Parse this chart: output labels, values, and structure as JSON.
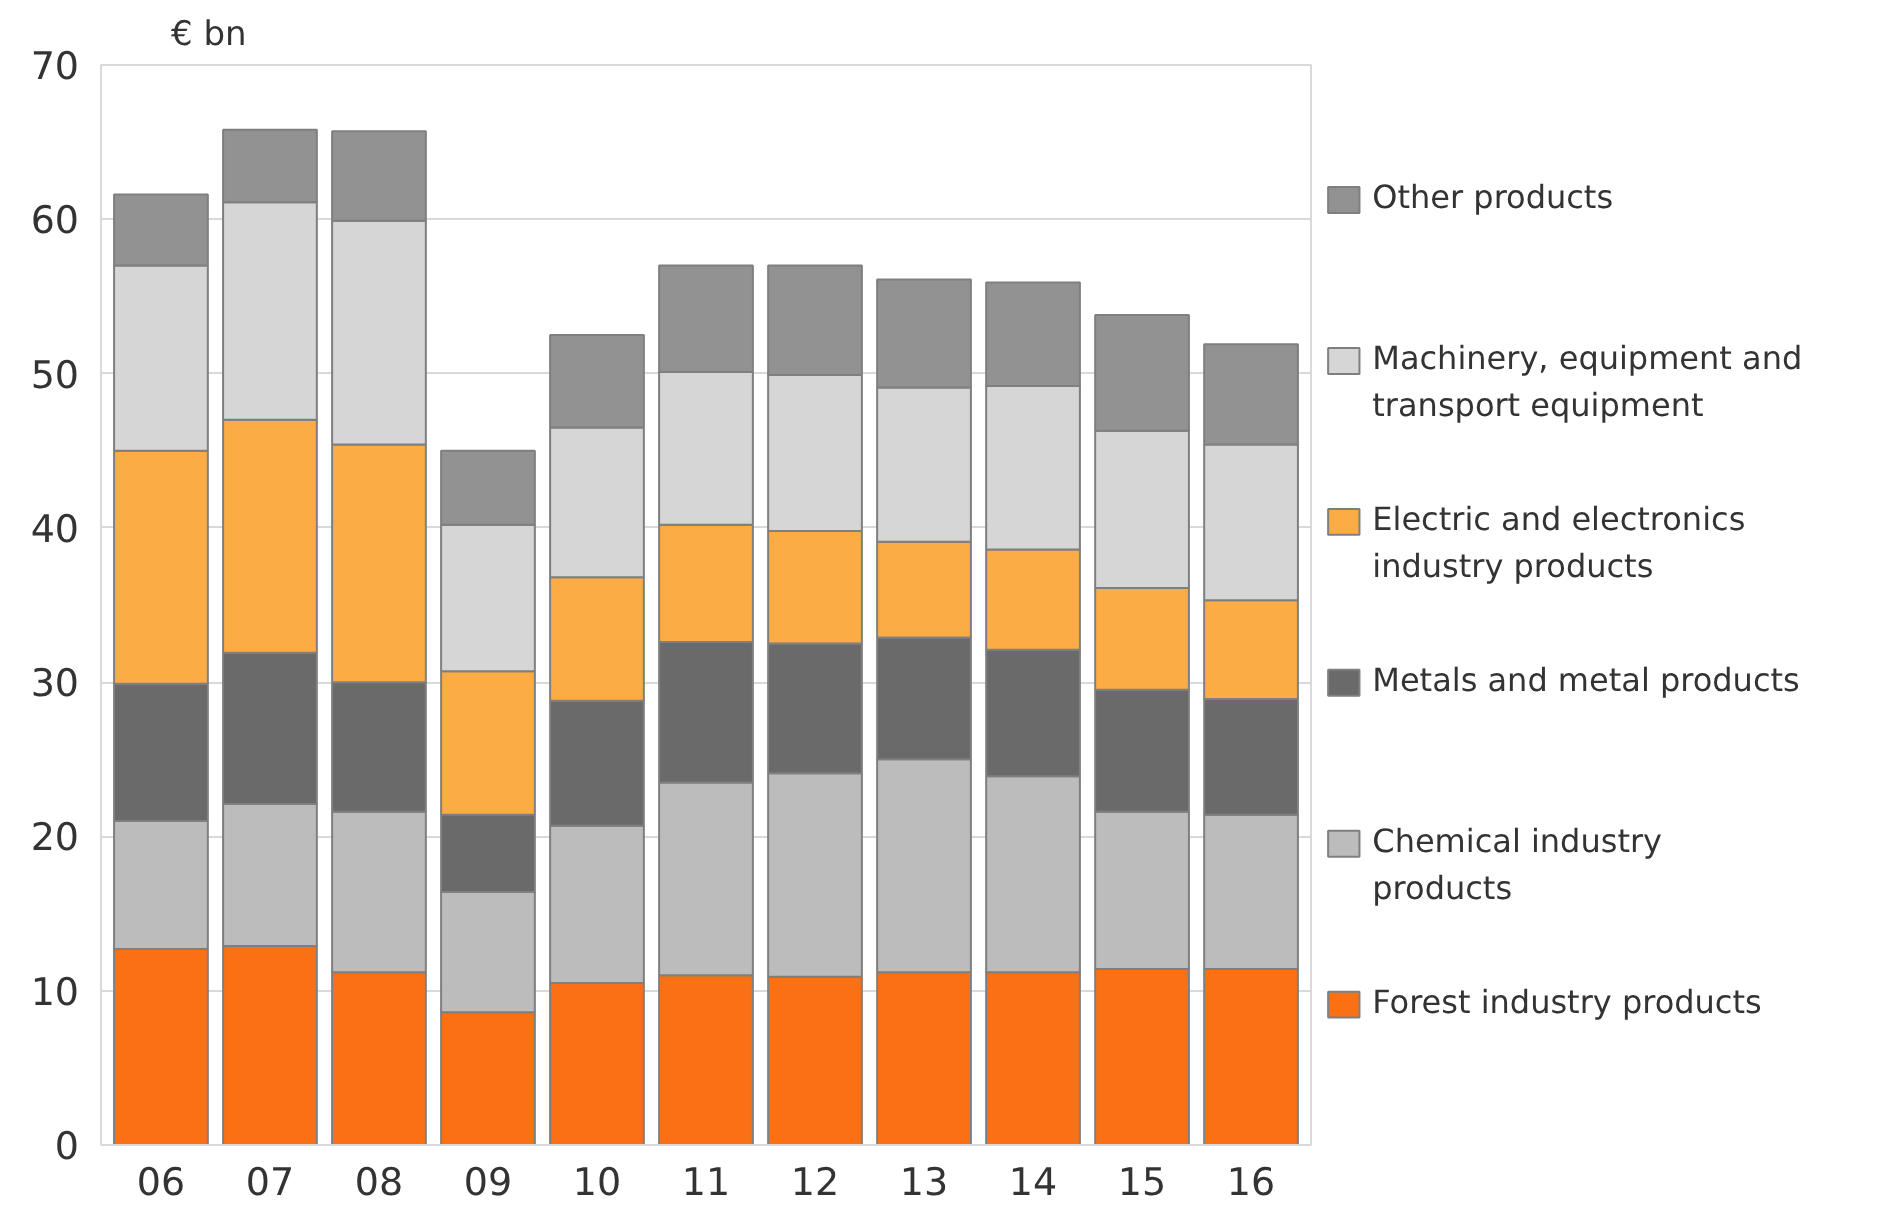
{
  "chart_data": {
    "type": "bar",
    "stacked": true,
    "ylabel": "€ bn",
    "categories": [
      "06",
      "07",
      "08",
      "09",
      "10",
      "11",
      "12",
      "13",
      "14",
      "15",
      "16"
    ],
    "ylim": [
      0,
      70
    ],
    "yticks": [
      0,
      10,
      20,
      30,
      40,
      50,
      60,
      70
    ],
    "grid": "y",
    "legend": "right",
    "series": [
      {
        "name": "Forest industry products",
        "color": "#fa7015",
        "values": [
          12.7,
          12.9,
          11.2,
          8.6,
          10.5,
          11.0,
          10.9,
          11.2,
          11.2,
          11.4,
          11.4
        ]
      },
      {
        "name": "Chemical industry products",
        "color": "#bcbcbc",
        "values": [
          8.3,
          9.2,
          10.4,
          7.8,
          10.2,
          12.5,
          13.2,
          13.8,
          12.7,
          10.2,
          10.0
        ]
      },
      {
        "name": "Metals and metal products",
        "color": "#6a6a6a",
        "values": [
          8.9,
          9.8,
          8.4,
          5.0,
          8.1,
          9.1,
          8.4,
          7.9,
          8.2,
          7.9,
          7.5
        ]
      },
      {
        "name": "Electric and electronics industry products",
        "color": "#fbac44",
        "values": [
          15.1,
          15.1,
          15.4,
          9.3,
          8.0,
          7.6,
          7.3,
          6.2,
          6.5,
          6.6,
          6.4
        ]
      },
      {
        "name": "Machinery, equipment and transport equipment",
        "color": "#d6d6d6",
        "values": [
          12.0,
          14.1,
          14.5,
          9.5,
          9.7,
          9.9,
          10.1,
          10.0,
          10.6,
          10.2,
          10.1
        ]
      },
      {
        "name": "Other products",
        "color": "#929292",
        "values": [
          4.6,
          4.7,
          5.8,
          4.8,
          6.0,
          6.9,
          7.1,
          7.0,
          6.7,
          7.5,
          6.5
        ]
      }
    ]
  }
}
